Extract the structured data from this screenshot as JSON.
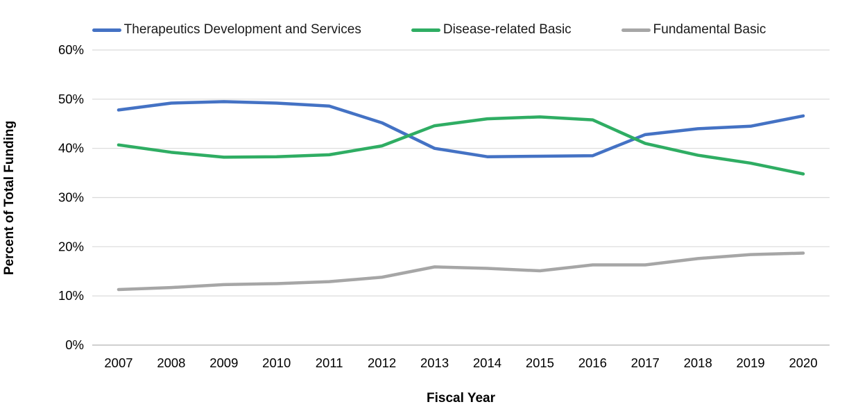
{
  "chart_data": {
    "type": "line",
    "title": "",
    "xlabel": "Fiscal Year",
    "ylabel": "Percent of Total Funding",
    "x": [
      2007,
      2008,
      2009,
      2010,
      2011,
      2012,
      2013,
      2014,
      2015,
      2016,
      2017,
      2018,
      2019,
      2020
    ],
    "categories": [
      "2007",
      "2008",
      "2009",
      "2010",
      "2011",
      "2012",
      "2013",
      "2014",
      "2015",
      "2016",
      "2017",
      "2018",
      "2019",
      "2020"
    ],
    "series": [
      {
        "name": "Therapeutics Development and Services",
        "color": "#4472C4",
        "values": [
          47.8,
          49.2,
          49.5,
          49.2,
          48.6,
          45.2,
          40.0,
          38.3,
          38.4,
          38.5,
          42.8,
          44.0,
          44.5,
          46.6
        ]
      },
      {
        "name": "Disease-related Basic",
        "color": "#2FAD63",
        "values": [
          40.7,
          39.2,
          38.2,
          38.3,
          38.7,
          40.5,
          44.6,
          46.0,
          46.4,
          45.8,
          41.0,
          38.6,
          37.0,
          34.8
        ]
      },
      {
        "name": "Fundamental Basic",
        "color": "#A6A6A6",
        "values": [
          11.3,
          11.7,
          12.3,
          12.5,
          12.9,
          13.8,
          15.9,
          15.6,
          15.1,
          16.3,
          16.3,
          17.6,
          18.4,
          18.7
        ]
      }
    ],
    "ylim": [
      0,
      60
    ],
    "y_tick_step": 10,
    "y_tick_labels": [
      "0%",
      "10%",
      "20%",
      "30%",
      "40%",
      "50%",
      "60%"
    ],
    "grid": true,
    "legend_position": "top",
    "gridline_color": "#D9D9D9",
    "axis_line_color": "#BFBFBF",
    "tick_label_color": "#000000"
  }
}
